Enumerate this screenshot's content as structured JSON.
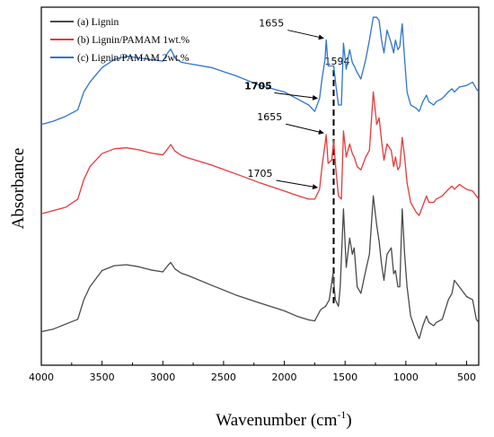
{
  "chart_data": {
    "type": "line",
    "title": "",
    "xlabel": "Wavenumber (cm",
    "xlabel_sup": "-1",
    "xlabel_close": ")",
    "ylabel": "Absorbance",
    "xlim": [
      4000,
      400
    ],
    "x_reversed": true,
    "x_ticks": [
      {
        "value": 4000,
        "label": "4000"
      },
      {
        "value": 3500,
        "label": "3500"
      },
      {
        "value": 3000,
        "label": "3000"
      },
      {
        "value": 2500,
        "label": "2500"
      },
      {
        "value": 2000,
        "label": "2000"
      },
      {
        "value": 1500,
        "label": "1500"
      },
      {
        "value": 1000,
        "label": "1000"
      },
      {
        "value": 500,
        "label": "500"
      }
    ],
    "y_ticks_visible": false,
    "grid": false,
    "legend_position": "top-left",
    "series": [
      {
        "name": "(a) Lignin",
        "color": "#4a4a4a",
        "points": [
          [
            4000,
            0.062
          ],
          [
            3900,
            0.07
          ],
          [
            3800,
            0.085
          ],
          [
            3700,
            0.1
          ],
          [
            3650,
            0.16
          ],
          [
            3600,
            0.2
          ],
          [
            3500,
            0.25
          ],
          [
            3400,
            0.265
          ],
          [
            3300,
            0.268
          ],
          [
            3200,
            0.262
          ],
          [
            3100,
            0.252
          ],
          [
            3000,
            0.246
          ],
          [
            2960,
            0.265
          ],
          [
            2935,
            0.275
          ],
          [
            2900,
            0.255
          ],
          [
            2850,
            0.242
          ],
          [
            2800,
            0.236
          ],
          [
            2600,
            0.205
          ],
          [
            2400,
            0.175
          ],
          [
            2200,
            0.15
          ],
          [
            2000,
            0.126
          ],
          [
            1900,
            0.11
          ],
          [
            1800,
            0.098
          ],
          [
            1750,
            0.095
          ],
          [
            1700,
            0.13
          ],
          [
            1660,
            0.14
          ],
          [
            1630,
            0.16
          ],
          [
            1600,
            0.24
          ],
          [
            1580,
            0.16
          ],
          [
            1555,
            0.14
          ],
          [
            1540,
            0.2
          ],
          [
            1513,
            0.44
          ],
          [
            1490,
            0.26
          ],
          [
            1462,
            0.35
          ],
          [
            1440,
            0.3
          ],
          [
            1425,
            0.32
          ],
          [
            1400,
            0.2
          ],
          [
            1370,
            0.18
          ],
          [
            1330,
            0.25
          ],
          [
            1300,
            0.3
          ],
          [
            1268,
            0.48
          ],
          [
            1240,
            0.39
          ],
          [
            1220,
            0.34
          ],
          [
            1200,
            0.27
          ],
          [
            1180,
            0.22
          ],
          [
            1155,
            0.3
          ],
          [
            1120,
            0.32
          ],
          [
            1100,
            0.24
          ],
          [
            1085,
            0.25
          ],
          [
            1065,
            0.2
          ],
          [
            1050,
            0.2
          ],
          [
            1030,
            0.44
          ],
          [
            1010,
            0.3
          ],
          [
            990,
            0.2
          ],
          [
            960,
            0.11
          ],
          [
            915,
            0.062
          ],
          [
            890,
            0.04
          ],
          [
            860,
            0.08
          ],
          [
            830,
            0.11
          ],
          [
            810,
            0.09
          ],
          [
            770,
            0.08
          ],
          [
            750,
            0.09
          ],
          [
            700,
            0.1
          ],
          [
            650,
            0.16
          ],
          [
            620,
            0.18
          ],
          [
            600,
            0.22
          ],
          [
            560,
            0.2
          ],
          [
            500,
            0.17
          ],
          [
            450,
            0.16
          ],
          [
            420,
            0.1
          ],
          [
            400,
            0.09
          ]
        ]
      },
      {
        "name": "(b) Lignin/PAMAM 1wt.%",
        "color": "#e8383b",
        "points": [
          [
            4000,
            0.425
          ],
          [
            3900,
            0.435
          ],
          [
            3800,
            0.445
          ],
          [
            3700,
            0.47
          ],
          [
            3650,
            0.53
          ],
          [
            3600,
            0.57
          ],
          [
            3500,
            0.61
          ],
          [
            3400,
            0.625
          ],
          [
            3300,
            0.628
          ],
          [
            3200,
            0.622
          ],
          [
            3100,
            0.612
          ],
          [
            3000,
            0.606
          ],
          [
            2960,
            0.625
          ],
          [
            2935,
            0.638
          ],
          [
            2900,
            0.618
          ],
          [
            2850,
            0.605
          ],
          [
            2800,
            0.598
          ],
          [
            2600,
            0.575
          ],
          [
            2400,
            0.548
          ],
          [
            2200,
            0.52
          ],
          [
            2000,
            0.495
          ],
          [
            1900,
            0.482
          ],
          [
            1800,
            0.47
          ],
          [
            1750,
            0.47
          ],
          [
            1710,
            0.5
          ],
          [
            1690,
            0.57
          ],
          [
            1665,
            0.64
          ],
          [
            1655,
            0.668
          ],
          [
            1640,
            0.58
          ],
          [
            1610,
            0.59
          ],
          [
            1594,
            0.65
          ],
          [
            1575,
            0.56
          ],
          [
            1555,
            0.48
          ],
          [
            1530,
            0.47
          ],
          [
            1513,
            0.68
          ],
          [
            1490,
            0.6
          ],
          [
            1462,
            0.64
          ],
          [
            1440,
            0.61
          ],
          [
            1425,
            0.6
          ],
          [
            1400,
            0.57
          ],
          [
            1370,
            0.56
          ],
          [
            1330,
            0.6
          ],
          [
            1300,
            0.62
          ],
          [
            1268,
            0.8
          ],
          [
            1240,
            0.7
          ],
          [
            1220,
            0.72
          ],
          [
            1200,
            0.65
          ],
          [
            1180,
            0.59
          ],
          [
            1155,
            0.64
          ],
          [
            1120,
            0.62
          ],
          [
            1100,
            0.57
          ],
          [
            1085,
            0.6
          ],
          [
            1065,
            0.56
          ],
          [
            1050,
            0.57
          ],
          [
            1030,
            0.66
          ],
          [
            1010,
            0.6
          ],
          [
            990,
            0.52
          ],
          [
            960,
            0.46
          ],
          [
            915,
            0.43
          ],
          [
            890,
            0.42
          ],
          [
            860,
            0.45
          ],
          [
            830,
            0.48
          ],
          [
            810,
            0.46
          ],
          [
            770,
            0.46
          ],
          [
            750,
            0.47
          ],
          [
            700,
            0.48
          ],
          [
            650,
            0.5
          ],
          [
            620,
            0.51
          ],
          [
            600,
            0.5
          ],
          [
            560,
            0.515
          ],
          [
            500,
            0.5
          ],
          [
            450,
            0.495
          ],
          [
            420,
            0.48
          ],
          [
            400,
            0.47
          ]
        ]
      },
      {
        "name": "(c) Lignin/PAMAM 2wt.%",
        "color": "#2e74d0",
        "points": [
          [
            4000,
            0.7
          ],
          [
            3900,
            0.71
          ],
          [
            3800,
            0.725
          ],
          [
            3700,
            0.745
          ],
          [
            3650,
            0.8
          ],
          [
            3600,
            0.83
          ],
          [
            3500,
            0.875
          ],
          [
            3400,
            0.9
          ],
          [
            3300,
            0.91
          ],
          [
            3200,
            0.905
          ],
          [
            3100,
            0.9
          ],
          [
            3000,
            0.895
          ],
          [
            2960,
            0.92
          ],
          [
            2935,
            0.932
          ],
          [
            2900,
            0.905
          ],
          [
            2850,
            0.892
          ],
          [
            2800,
            0.888
          ],
          [
            2600,
            0.875
          ],
          [
            2400,
            0.85
          ],
          [
            2200,
            0.82
          ],
          [
            2000,
            0.8
          ],
          [
            1900,
            0.78
          ],
          [
            1800,
            0.76
          ],
          [
            1750,
            0.74
          ],
          [
            1710,
            0.78
          ],
          [
            1690,
            0.84
          ],
          [
            1665,
            0.9
          ],
          [
            1655,
            0.96
          ],
          [
            1640,
            0.88
          ],
          [
            1610,
            0.88
          ],
          [
            1594,
            0.88
          ],
          [
            1575,
            0.82
          ],
          [
            1555,
            0.76
          ],
          [
            1530,
            0.76
          ],
          [
            1513,
            0.95
          ],
          [
            1490,
            0.87
          ],
          [
            1462,
            0.93
          ],
          [
            1440,
            0.89
          ],
          [
            1425,
            0.88
          ],
          [
            1400,
            0.86
          ],
          [
            1370,
            0.84
          ],
          [
            1330,
            0.9
          ],
          [
            1300,
            0.96
          ],
          [
            1268,
            1.03
          ],
          [
            1240,
            1.03
          ],
          [
            1220,
            1.02
          ],
          [
            1200,
            0.96
          ],
          [
            1180,
            0.92
          ],
          [
            1155,
            0.99
          ],
          [
            1120,
            0.95
          ],
          [
            1100,
            0.92
          ],
          [
            1085,
            0.96
          ],
          [
            1065,
            0.93
          ],
          [
            1050,
            0.94
          ],
          [
            1030,
            1.01
          ],
          [
            1010,
            0.9
          ],
          [
            990,
            0.8
          ],
          [
            960,
            0.76
          ],
          [
            915,
            0.75
          ],
          [
            890,
            0.74
          ],
          [
            860,
            0.77
          ],
          [
            830,
            0.79
          ],
          [
            810,
            0.77
          ],
          [
            770,
            0.76
          ],
          [
            750,
            0.77
          ],
          [
            700,
            0.78
          ],
          [
            650,
            0.8
          ],
          [
            620,
            0.81
          ],
          [
            600,
            0.8
          ],
          [
            560,
            0.815
          ],
          [
            500,
            0.82
          ],
          [
            450,
            0.83
          ],
          [
            420,
            0.81
          ],
          [
            400,
            0.8
          ]
        ]
      }
    ],
    "reference_line": {
      "x": 1594,
      "label": "1594",
      "style": "dashed",
      "color": "#000000"
    },
    "annotations": [
      {
        "label": "1655",
        "bold": false,
        "target": [
          1655,
          0.96
        ]
      },
      {
        "label": "1705",
        "bold": true,
        "target": [
          1705,
          0.775
        ]
      },
      {
        "label": "1655",
        "bold": false,
        "target": [
          1655,
          0.668
        ]
      },
      {
        "label": "1705",
        "bold": false,
        "target": [
          1705,
          0.5
        ]
      }
    ]
  }
}
